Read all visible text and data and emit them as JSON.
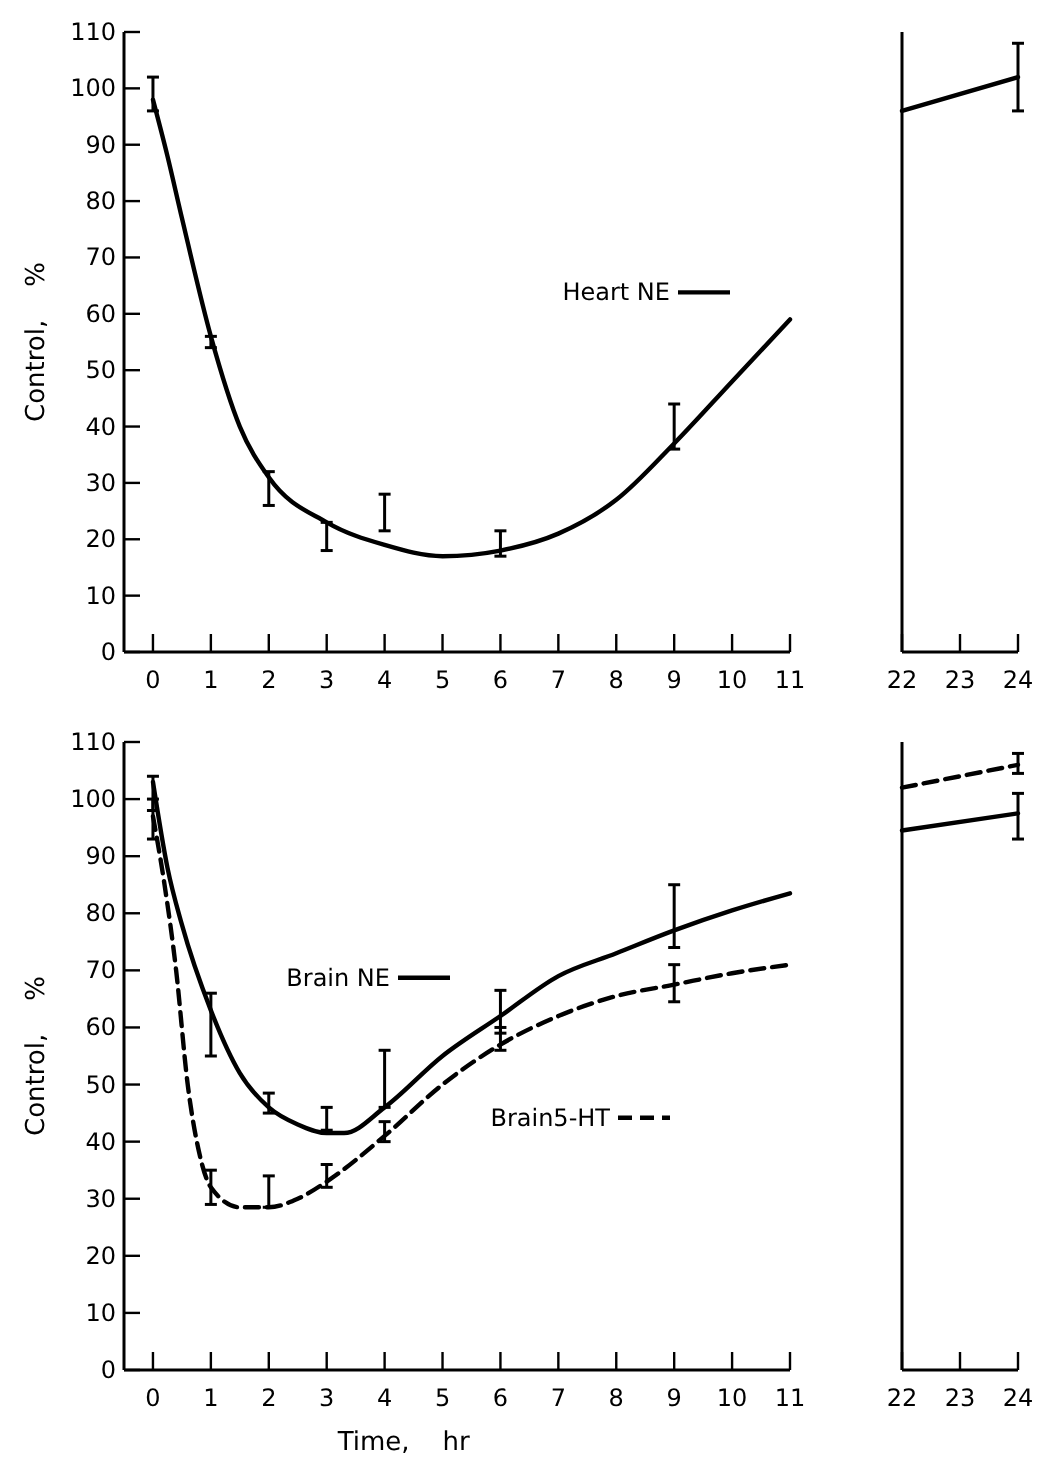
{
  "chart_data": [
    {
      "type": "line",
      "ylabel": "Control,    %",
      "xlim": [
        -0.5,
        11
      ],
      "xticks": [
        0,
        1,
        2,
        3,
        4,
        5,
        6,
        7,
        8,
        9,
        10,
        11
      ],
      "ylim": [
        0,
        110
      ],
      "yticks": [
        0,
        10,
        20,
        30,
        40,
        50,
        60,
        70,
        80,
        90,
        100,
        110
      ],
      "legend": "right",
      "grid": false,
      "marker": "none",
      "series": [
        {
          "name": "Heart NE",
          "color": "#000000",
          "line_style": "solid",
          "x": [
            0,
            0.25,
            0.5,
            1,
            1.5,
            2,
            3,
            4,
            5,
            6,
            7,
            8,
            9,
            10,
            11
          ],
          "values": [
            98,
            88,
            77,
            56,
            40,
            31,
            23,
            19,
            17,
            18,
            21,
            27,
            37,
            48,
            59
          ],
          "errors": [
            [
              96,
              102
            ],
            null,
            null,
            [
              54,
              56
            ],
            null,
            [
              26,
              32
            ],
            [
              18,
              23
            ],
            [
              21.5,
              28
            ],
            null,
            [
              17,
              21.5
            ],
            null,
            null,
            [
              36,
              44
            ],
            null,
            null
          ]
        }
      ]
    },
    {
      "type": "line",
      "xlim": [
        22,
        24
      ],
      "xticks": [
        22,
        23,
        24
      ],
      "ylim": [
        0,
        110
      ],
      "tick_labels": "x",
      "grid": false,
      "marker": "none",
      "series": [
        {
          "color": "#000000",
          "line_style": "solid",
          "x": [
            22,
            24
          ],
          "values": [
            96,
            102
          ],
          "errors": [
            null,
            [
              96,
              108
            ]
          ]
        }
      ]
    },
    {
      "type": "line",
      "xlabel": "Time,    hr",
      "ylabel": "Control,    %",
      "xlim": [
        -0.5,
        11
      ],
      "xticks": [
        0,
        1,
        2,
        3,
        4,
        5,
        6,
        7,
        8,
        9,
        10,
        11
      ],
      "ylim": [
        0,
        110
      ],
      "yticks": [
        0,
        10,
        20,
        30,
        40,
        50,
        60,
        70,
        80,
        90,
        100,
        110
      ],
      "legend": "right",
      "grid": false,
      "marker": "none",
      "series": [
        {
          "name": "Brain NE",
          "color": "#000000",
          "line_style": "solid",
          "x": [
            0,
            0.25,
            0.5,
            1,
            1.5,
            2,
            2.5,
            3,
            3.3,
            4,
            5,
            6,
            7,
            8,
            9,
            10,
            11
          ],
          "values": [
            103,
            88,
            78,
            63,
            52,
            46,
            43,
            41.5,
            41.5,
            46,
            55,
            62,
            69,
            73,
            77,
            80.5,
            83.5
          ],
          "errors": [
            [
              98,
              104
            ],
            null,
            null,
            [
              55,
              66
            ],
            null,
            [
              45,
              48.5
            ],
            null,
            [
              42,
              46
            ],
            null,
            [
              46,
              56
            ],
            null,
            [
              59,
              66.5
            ],
            null,
            null,
            [
              74,
              85
            ],
            null,
            null
          ]
        },
        {
          "name": "Brain5-HT",
          "color": "#000000",
          "line_style": "dashed",
          "x": [
            0,
            0.2,
            0.4,
            0.6,
            0.8,
            1,
            1.5,
            2,
            2.5,
            3,
            4,
            5,
            6,
            7,
            8,
            9,
            10,
            11
          ],
          "values": [
            97,
            85,
            70,
            50,
            38,
            32,
            28.5,
            28.5,
            30,
            33,
            41,
            50,
            57,
            62,
            65.5,
            67.5,
            69.5,
            71
          ],
          "errors": [
            [
              93,
              100
            ],
            null,
            null,
            null,
            null,
            [
              29,
              35
            ],
            null,
            [
              28.5,
              34
            ],
            null,
            [
              32,
              36
            ],
            [
              40,
              43.5
            ],
            null,
            [
              56,
              60
            ],
            null,
            null,
            [
              64.5,
              71
            ],
            null,
            null
          ]
        }
      ]
    },
    {
      "type": "line",
      "xlim": [
        22,
        24
      ],
      "xticks": [
        22,
        23,
        24
      ],
      "ylim": [
        0,
        110
      ],
      "tick_labels": "x",
      "grid": false,
      "marker": "none",
      "series": [
        {
          "color": "#000000",
          "line_style": "dashed",
          "x": [
            22,
            24
          ],
          "values": [
            102,
            106
          ],
          "errors": [
            null,
            [
              104.5,
              108
            ]
          ]
        },
        {
          "color": "#000000",
          "line_style": "solid",
          "x": [
            22,
            24
          ],
          "values": [
            94.5,
            97.5
          ],
          "errors": [
            null,
            [
              93,
              101
            ]
          ]
        }
      ]
    }
  ]
}
